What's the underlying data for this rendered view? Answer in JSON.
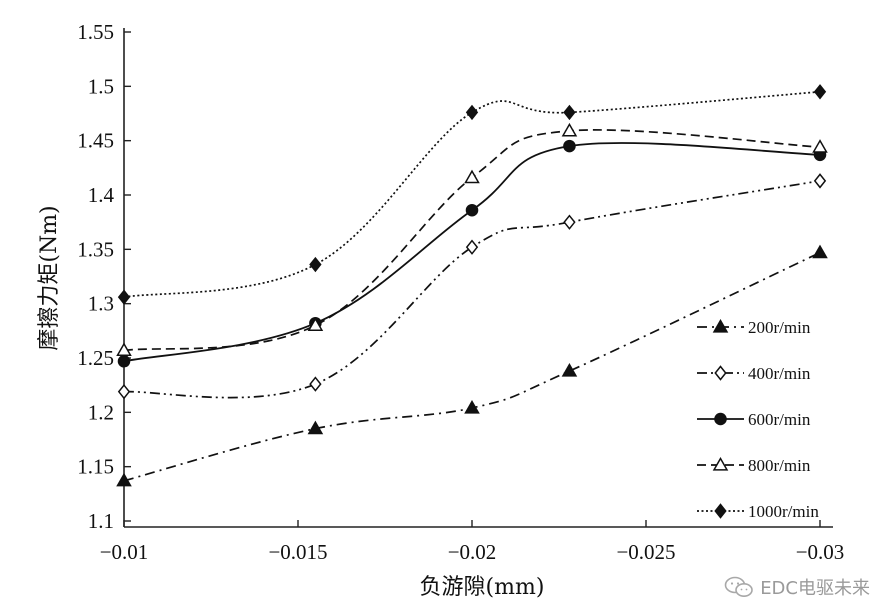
{
  "chart_data": {
    "type": "line",
    "title": "",
    "xlabel": "负游隙(mm)",
    "ylabel": "摩擦力矩(Nm)",
    "xlim": [
      -0.01,
      -0.03
    ],
    "ylim": [
      1.1,
      1.55
    ],
    "x_ticks": [
      "-0.01",
      "-0.015",
      "-0.02",
      "-0.025",
      "-0.03"
    ],
    "x_tick_values": [
      -0.01,
      -0.015,
      -0.02,
      -0.025,
      -0.03
    ],
    "y_ticks": [
      "1.1",
      "1.15",
      "1.2",
      "1.25",
      "1.3",
      "1.35",
      "1.4",
      "1.45",
      "1.5",
      "1.55"
    ],
    "y_tick_values": [
      1.1,
      1.15,
      1.2,
      1.25,
      1.3,
      1.35,
      1.4,
      1.45,
      1.5,
      1.55
    ],
    "x": [
      -0.01,
      -0.0155,
      -0.02,
      -0.0228,
      -0.03
    ],
    "grid": false,
    "legend_position": "right",
    "series": [
      {
        "name": "200r/min",
        "marker": "triangle-filled",
        "dash": "dashdot",
        "values": [
          1.137,
          1.185,
          1.204,
          1.238,
          1.347
        ]
      },
      {
        "name": "400r/min",
        "marker": "diamond-open",
        "dash": "dashdotdot",
        "values": [
          1.219,
          1.226,
          1.352,
          1.375,
          1.413
        ]
      },
      {
        "name": "600r/min",
        "marker": "circle-filled",
        "dash": "solid",
        "values": [
          1.247,
          1.282,
          1.386,
          1.445,
          1.437
        ]
      },
      {
        "name": "800r/min",
        "marker": "triangle-open",
        "dash": "dashed",
        "values": [
          1.257,
          1.28,
          1.416,
          1.459,
          1.444
        ]
      },
      {
        "name": "1000r/min",
        "marker": "diamond-filled",
        "dash": "dotted",
        "values": [
          1.306,
          1.336,
          1.476,
          1.476,
          1.495
        ]
      }
    ]
  },
  "watermark": {
    "icon": "wechat-icon",
    "text": "EDC电驱未来"
  }
}
